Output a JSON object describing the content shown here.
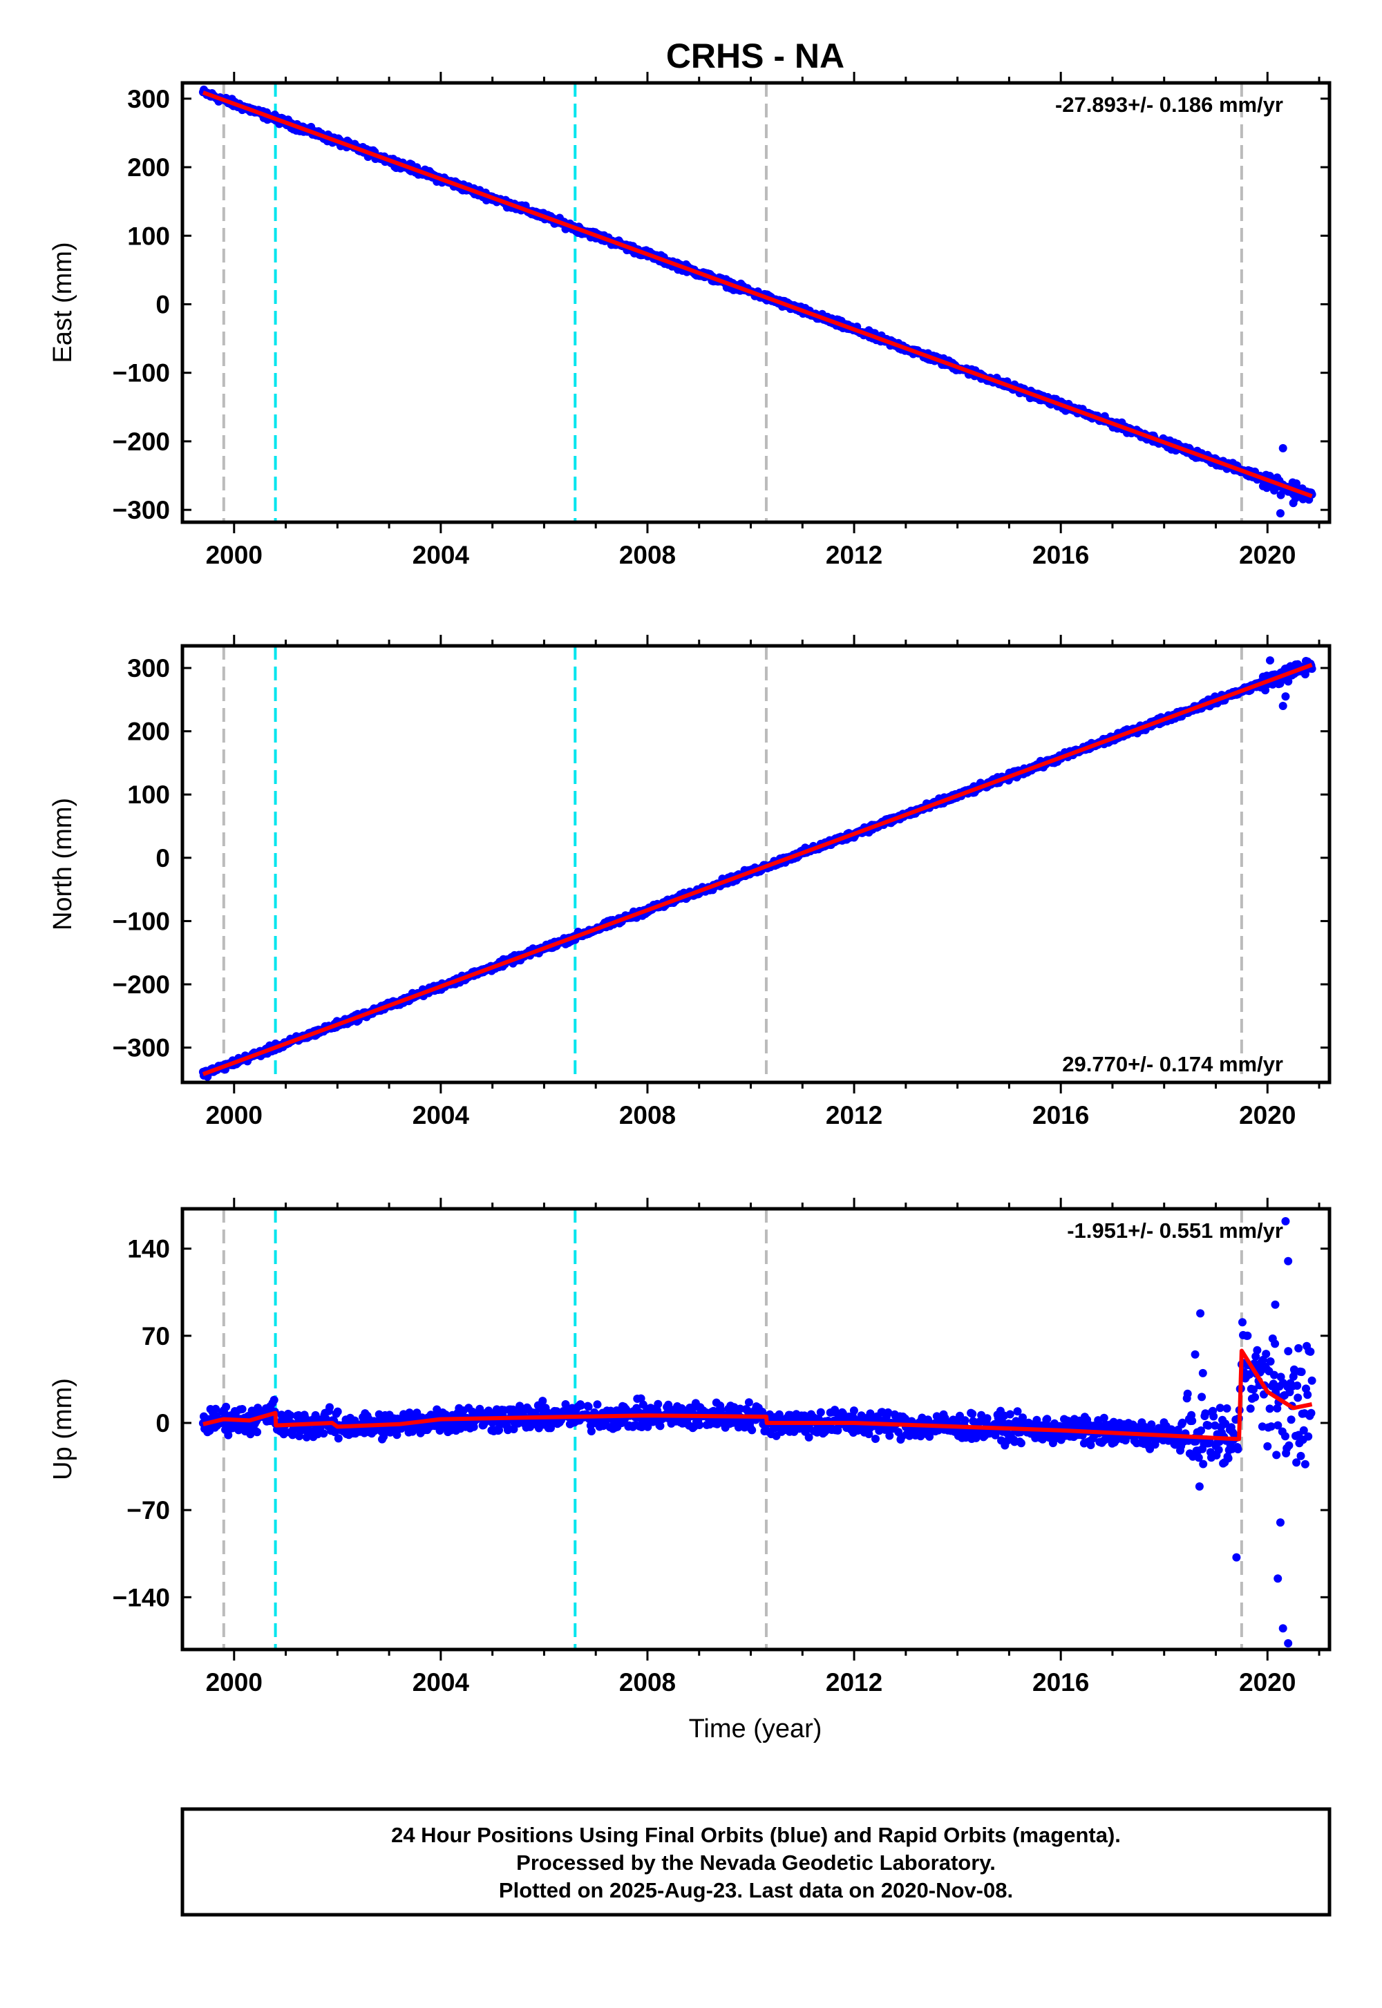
{
  "chart_data": {
    "type": "scatter",
    "title": "CRHS - NA",
    "xlabel": "Time (year)",
    "x_tick_labels": [
      "2000",
      "2004",
      "2008",
      "2012",
      "2016",
      "2020"
    ],
    "x_ticks": [
      2000,
      2004,
      2008,
      2012,
      2016,
      2020
    ],
    "xlim": [
      1999,
      2021.2
    ],
    "grid": false,
    "colors": {
      "final_orbits": "#0000ff",
      "model": "#ff0000",
      "offset_equipment": "#bbbbbb",
      "offset_other": "#00e5ee",
      "frame": "#000000"
    },
    "vertical_lines": [
      {
        "x": 1999.8,
        "color": "grey"
      },
      {
        "x": 2000.8,
        "color": "cyan"
      },
      {
        "x": 2006.6,
        "color": "cyan"
      },
      {
        "x": 2010.3,
        "color": "grey"
      },
      {
        "x": 2019.5,
        "color": "grey"
      }
    ],
    "panels": [
      {
        "id": "east",
        "ylabel": "East (mm)",
        "ylim": [
          -318,
          323
        ],
        "y_ticks": [
          300,
          200,
          100,
          0,
          -100,
          -200,
          -300
        ],
        "y_tick_labels": [
          "300",
          "200",
          "100",
          "0",
          "−100",
          "−200",
          "−300"
        ],
        "rate_text": "-27.893+/- 0.186 mm/yr",
        "rate_position": "top-right",
        "trend": {
          "start_year": 1999.4,
          "start_value": 309,
          "end_year": 2020.86,
          "end_value": -280
        },
        "scatter_noise": 4,
        "features": [
          {
            "x": 2020.3,
            "y": -210
          },
          {
            "x": 2020.25,
            "y": -305
          },
          {
            "x": 2020.5,
            "y": -290
          }
        ]
      },
      {
        "id": "north",
        "ylabel": "North (mm)",
        "ylim": [
          -355,
          335
        ],
        "y_ticks": [
          300,
          200,
          100,
          0,
          -100,
          -200,
          -300
        ],
        "y_tick_labels": [
          "300",
          "200",
          "100",
          "0",
          "−100",
          "−200",
          "−300"
        ],
        "rate_text": "29.770+/- 0.174 mm/yr",
        "rate_position": "bottom-right",
        "trend": {
          "start_year": 1999.4,
          "start_value": -342,
          "end_year": 2020.86,
          "end_value": 305
        },
        "scatter_noise": 4,
        "features": [
          {
            "x": 2020.3,
            "y": 240
          },
          {
            "x": 2020.35,
            "y": 255
          },
          {
            "x": 2020.05,
            "y": 312
          }
        ]
      },
      {
        "id": "up",
        "ylabel": "Up (mm)",
        "ylim": [
          -182,
          172
        ],
        "y_ticks": [
          140,
          70,
          0,
          -70,
          -140
        ],
        "y_tick_labels": [
          "140",
          "70",
          "0",
          "−70",
          "−140"
        ],
        "rate_text": "-1.951+/- 0.551 mm/yr",
        "rate_position": "top-right",
        "scatter_noise": 8,
        "model_line": [
          [
            1999.4,
            -1
          ],
          [
            1999.8,
            3
          ],
          [
            2000.3,
            2
          ],
          [
            2000.8,
            8
          ],
          [
            2000.81,
            -2
          ],
          [
            2001.9,
            0
          ],
          [
            2002.0,
            -3
          ],
          [
            2003.2,
            -1
          ],
          [
            2004.0,
            3
          ],
          [
            2006.6,
            5
          ],
          [
            2008.0,
            6
          ],
          [
            2010.3,
            5
          ],
          [
            2010.31,
            0
          ],
          [
            2012.0,
            0
          ],
          [
            2014.0,
            -3
          ],
          [
            2016.0,
            -6
          ],
          [
            2018.0,
            -10
          ],
          [
            2019.45,
            -13
          ],
          [
            2019.5,
            58
          ],
          [
            2020.0,
            25
          ],
          [
            2020.5,
            12
          ],
          [
            2020.86,
            15
          ]
        ],
        "features": [
          {
            "x": 2018.6,
            "y": 55
          },
          {
            "x": 2018.7,
            "y": 88
          },
          {
            "x": 2018.75,
            "y": 40
          },
          {
            "x": 2019.4,
            "y": -108
          },
          {
            "x": 2019.6,
            "y": 70
          },
          {
            "x": 2020.15,
            "y": 95
          },
          {
            "x": 2020.2,
            "y": -125
          },
          {
            "x": 2020.3,
            "y": -165
          },
          {
            "x": 2020.35,
            "y": 162
          },
          {
            "x": 2020.4,
            "y": 130
          },
          {
            "x": 2020.4,
            "y": -177
          },
          {
            "x": 2020.25,
            "y": -80
          },
          {
            "x": 2020.6,
            "y": 60
          }
        ]
      }
    ]
  },
  "footer": {
    "line1": "24 Hour Positions Using Final Orbits (blue) and Rapid Orbits (magenta).",
    "line2": "Processed by the Nevada Geodetic Laboratory.",
    "line3": "Plotted on 2025-Aug-23. Last data on 2020-Nov-08."
  }
}
